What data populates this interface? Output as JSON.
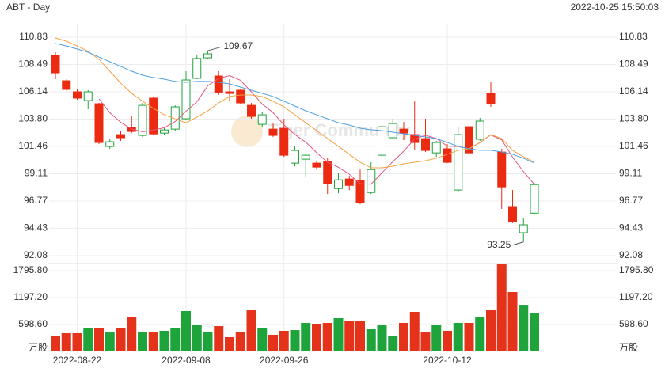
{
  "chart_data": [
    {
      "type": "candlestick",
      "title": "ABT - Day",
      "timestamp": "2022-10-25 15:50:03",
      "watermark": "Tiger Community",
      "up_color": "#1ea43b",
      "down_color": "#ec2a12",
      "categories": [
        null,
        null,
        "2022-08-22",
        null,
        null,
        null,
        null,
        null,
        null,
        null,
        null,
        null,
        "2022-09-08",
        null,
        null,
        null,
        null,
        null,
        null,
        null,
        null,
        "2022-09-26",
        null,
        null,
        null,
        null,
        null,
        null,
        null,
        null,
        null,
        null,
        null,
        null,
        null,
        null,
        "2022-10-12",
        null,
        null,
        null,
        null,
        null,
        null,
        null,
        null
      ],
      "open": [
        109.27,
        107.09,
        106.14,
        105.39,
        105.12,
        101.45,
        102.47,
        103.08,
        102.4,
        105.6,
        102.6,
        102.94,
        103.83,
        107.3,
        109.06,
        107.5,
        106.14,
        106.28,
        104.98,
        103.35,
        102.94,
        103.01,
        100.02,
        100.36,
        100.02,
        100.15,
        97.84,
        98.66,
        98.52,
        97.5,
        100.7,
        102.2,
        102.94,
        102.47,
        102.13,
        100.9,
        101.25,
        97.71,
        103.15,
        102.07,
        106.0,
        100.97,
        96.29,
        94.05,
        95.73
      ],
      "high": [
        109.54,
        107.23,
        106.35,
        106.28,
        105.19,
        102.07,
        102.81,
        104.1,
        105.19,
        105.73,
        103.15,
        104.98,
        107.91,
        109.34,
        109.67,
        107.91,
        107.23,
        106.41,
        105.19,
        104.44,
        103.42,
        103.83,
        101.45,
        100.83,
        100.22,
        100.43,
        99.2,
        98.93,
        99.47,
        100.09,
        103.35,
        103.83,
        103.55,
        105.32,
        103.83,
        101.93,
        101.65,
        103.15,
        103.42,
        103.9,
        106.96,
        101.25,
        97.71,
        95.27,
        98.32
      ],
      "low": [
        107.23,
        106.21,
        105.46,
        104.65,
        101.65,
        101.25,
        101.93,
        102.6,
        102.26,
        102.4,
        102.47,
        102.81,
        103.7,
        107.23,
        108.93,
        105.87,
        105.32,
        105.05,
        103.83,
        103.15,
        102.26,
        100.56,
        99.75,
        98.79,
        99.47,
        97.37,
        97.43,
        97.71,
        96.48,
        97.37,
        100.56,
        102.07,
        102.0,
        101.11,
        100.97,
        100.56,
        100.02,
        97.57,
        100.77,
        101.93,
        104.85,
        96.09,
        94.87,
        93.25,
        95.59
      ],
      "close": [
        107.77,
        106.35,
        105.6,
        106.14,
        101.79,
        101.86,
        102.2,
        102.74,
        104.98,
        102.53,
        102.87,
        104.85,
        107.16,
        109.0,
        109.4,
        106.07,
        106.0,
        105.19,
        104.03,
        104.17,
        102.4,
        100.7,
        101.11,
        100.7,
        99.68,
        98.25,
        98.59,
        98.11,
        96.62,
        99.47,
        103.15,
        103.42,
        102.6,
        101.79,
        101.11,
        101.79,
        100.09,
        102.47,
        100.9,
        103.63,
        105.12,
        97.98,
        95.0,
        94.73,
        98.18
      ],
      "lines": [
        {
          "color": "#e2577e",
          "values": [
            null,
            null,
            null,
            null,
            105.53,
            104.35,
            103.52,
            102.95,
            102.71,
            102.86,
            103.06,
            103.59,
            104.48,
            105.28,
            106.66,
            107.3,
            107.53,
            107.13,
            106.14,
            105.09,
            104.36,
            103.3,
            102.48,
            101.82,
            100.92,
            100.09,
            99.67,
            99.07,
            98.25,
            98.21,
            99.19,
            100.15,
            101.05,
            102.09,
            102.41,
            102.14,
            101.48,
            101.45,
            101.27,
            101.78,
            102.44,
            102.02,
            100.53,
            99.29,
            98.2
          ]
        },
        {
          "color": "#f5a243",
          "values": [
            110.76,
            110.49,
            110.08,
            109.61,
            108.93,
            107.91,
            106.89,
            106.01,
            105.33,
            104.72,
            104.17,
            103.83,
            103.49,
            103.97,
            104.51,
            105.19,
            105.74,
            105.87,
            105.87,
            105.74,
            105.33,
            104.85,
            104.17,
            103.49,
            102.81,
            102.13,
            101.46,
            100.78,
            100.1,
            99.62,
            99.62,
            99.76,
            99.96,
            100.1,
            100.23,
            100.44,
            100.78,
            101.12,
            101.25,
            101.8,
            102.47,
            102.13,
            101.12,
            100.57,
            100.1
          ]
        },
        {
          "color": "#4a9fe0",
          "values": [
            110.29,
            110.08,
            109.81,
            109.54,
            109.13,
            108.72,
            108.32,
            107.91,
            107.57,
            107.37,
            107.23,
            107.03,
            106.96,
            107.03,
            107.03,
            106.96,
            106.82,
            106.55,
            106.28,
            106.01,
            105.74,
            105.33,
            104.92,
            104.51,
            104.17,
            103.83,
            103.49,
            103.29,
            103.02,
            102.88,
            102.81,
            102.68,
            102.54,
            102.41,
            102.27,
            102.13,
            101.8,
            101.46,
            101.25,
            101.12,
            101.12,
            100.98,
            100.78,
            100.44,
            100.03
          ]
        }
      ],
      "ylim": [
        92.08,
        110.83
      ],
      "yticks": [
        110.83,
        108.49,
        106.14,
        {
          "value": 103.8,
          "label": "103.80"
        },
        101.46,
        99.11,
        96.77,
        94.43,
        92.08
      ],
      "grid": true
    },
    {
      "type": "bar",
      "unit_label": "万股",
      "up_color": "#1ea43b",
      "down_color": "#e4321b",
      "values": [
        334,
        405,
        405,
        528,
        528,
        422,
        528,
        774,
        440,
        422,
        458,
        528,
        898,
        598,
        440,
        563,
        317,
        422,
        915,
        528,
        370,
        458,
        475,
        634,
        616,
        634,
        739,
        669,
        669,
        493,
        581,
        352,
        634,
        880,
        422,
        581,
        458,
        634,
        634,
        757,
        915,
        1936,
        1320,
        1038,
        845
      ],
      "ylim": [
        0,
        1954
      ],
      "yticks": [
        {
          "value": 598.6,
          "label": "598.60"
        },
        {
          "value": 1197.2,
          "label": "1197.20"
        },
        {
          "value": 1795.8,
          "label": "1795.80"
        }
      ],
      "grid": true
    }
  ]
}
